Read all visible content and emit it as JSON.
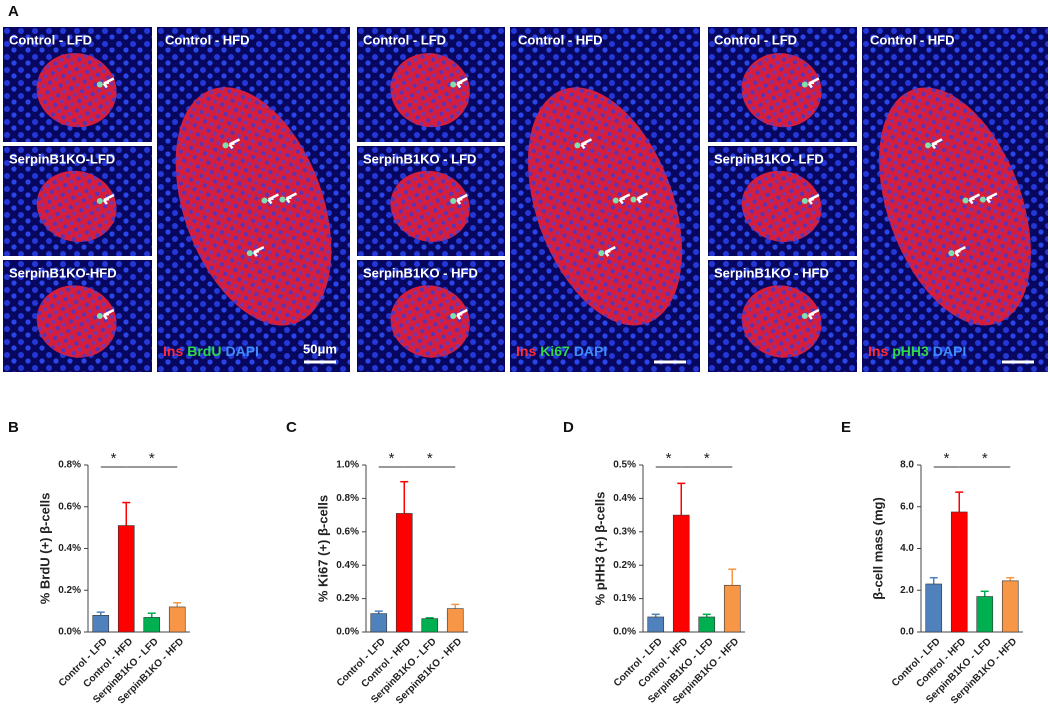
{
  "panel_a": {
    "label": "A",
    "groups": [
      {
        "small": [
          "Control - LFD",
          "SerpinB1KO-LFD",
          "SerpinB1KO-HFD"
        ],
        "big": "Control - HFD",
        "stain": [
          "Ins",
          "BrdU",
          "DAPI"
        ],
        "scale": "50μm"
      },
      {
        "small": [
          "Control - LFD",
          "SerpinB1KO - LFD",
          "SerpinB1KO - HFD"
        ],
        "big": "Control - HFD",
        "stain": [
          "Ins",
          "Ki67",
          "DAPI"
        ]
      },
      {
        "small": [
          "Control - LFD",
          "SerpinB1KO- LFD",
          "SerpinB1KO - HFD"
        ],
        "big": "Control - HFD",
        "stain": [
          "Ins",
          "pHH3",
          "DAPI"
        ]
      }
    ]
  },
  "chart_data": [
    {
      "type": "bar",
      "label": "B",
      "y_label": "% BrdU (+) β-cells",
      "categories": [
        "Control - LFD",
        "Control - HFD",
        "SerpinB1KO - LFD",
        "SerpinB1KO - HFD"
      ],
      "values": [
        0.08,
        0.51,
        0.07,
        0.12
      ],
      "errors": [
        0.015,
        0.11,
        0.02,
        0.02
      ],
      "colors": [
        "#4f81bd",
        "#ff0000",
        "#00b050",
        "#f79646"
      ],
      "ylim": [
        0,
        0.8
      ],
      "yticks": [
        {
          "value": 0,
          "label": "0.0%"
        },
        {
          "value": 0.2,
          "label": "0.2%"
        },
        {
          "value": 0.4,
          "label": "0.4%"
        },
        {
          "value": 0.6,
          "label": "0.6%"
        },
        {
          "value": 0.8,
          "label": "0.8%"
        }
      ],
      "annotations": [
        "*",
        "*"
      ]
    },
    {
      "type": "bar",
      "label": "C",
      "y_label": "% Ki67 (+) β-cells",
      "categories": [
        "Control - LFD",
        "Control - HFD",
        "SerpinB1KO - LFD",
        "SerpinB1KO - HFD"
      ],
      "values": [
        0.11,
        0.71,
        0.08,
        0.14
      ],
      "errors": [
        0.015,
        0.19,
        0.005,
        0.025
      ],
      "colors": [
        "#4f81bd",
        "#ff0000",
        "#00b050",
        "#f79646"
      ],
      "ylim": [
        0,
        1.0
      ],
      "yticks": [
        {
          "value": 0,
          "label": "0.0%"
        },
        {
          "value": 0.2,
          "label": "0.2%"
        },
        {
          "value": 0.4,
          "label": "0.4%"
        },
        {
          "value": 0.6,
          "label": "0.6%"
        },
        {
          "value": 0.8,
          "label": "0.8%"
        },
        {
          "value": 1.0,
          "label": "1.0%"
        }
      ],
      "annotations": [
        "*",
        "*"
      ]
    },
    {
      "type": "bar",
      "label": "D",
      "y_label": "% pHH3 (+) β-cells",
      "categories": [
        "Control - LFD",
        "Control - HFD",
        "SerpinB1KO - LFD",
        "SerpinB1KO - HFD"
      ],
      "values": [
        0.045,
        0.35,
        0.045,
        0.14
      ],
      "errors": [
        0.008,
        0.095,
        0.008,
        0.048
      ],
      "colors": [
        "#4f81bd",
        "#ff0000",
        "#00b050",
        "#f79646"
      ],
      "ylim": [
        0,
        0.5
      ],
      "yticks": [
        {
          "value": 0,
          "label": "0.0%"
        },
        {
          "value": 0.1,
          "label": "0.1%"
        },
        {
          "value": 0.2,
          "label": "0.2%"
        },
        {
          "value": 0.3,
          "label": "0.3%"
        },
        {
          "value": 0.4,
          "label": "0.4%"
        },
        {
          "value": 0.5,
          "label": "0.5%"
        }
      ],
      "annotations": [
        "*",
        "*"
      ]
    },
    {
      "type": "bar",
      "label": "E",
      "y_label": "β-cell mass (mg)",
      "categories": [
        "Control - LFD",
        "Control - HFD",
        "SerpinB1KO - LFD",
        "SerpinB1KO - HFD"
      ],
      "values": [
        2.3,
        5.75,
        1.7,
        2.45
      ],
      "errors": [
        0.3,
        0.95,
        0.25,
        0.15
      ],
      "colors": [
        "#4f81bd",
        "#ff0000",
        "#00b050",
        "#f79646"
      ],
      "ylim": [
        0,
        8
      ],
      "yticks": [
        {
          "value": 0,
          "label": "0.0"
        },
        {
          "value": 2,
          "label": "2.0"
        },
        {
          "value": 4,
          "label": "4.0"
        },
        {
          "value": 6,
          "label": "6.0"
        },
        {
          "value": 8,
          "label": "8.0"
        }
      ],
      "annotations": [
        "*",
        "*"
      ]
    }
  ]
}
